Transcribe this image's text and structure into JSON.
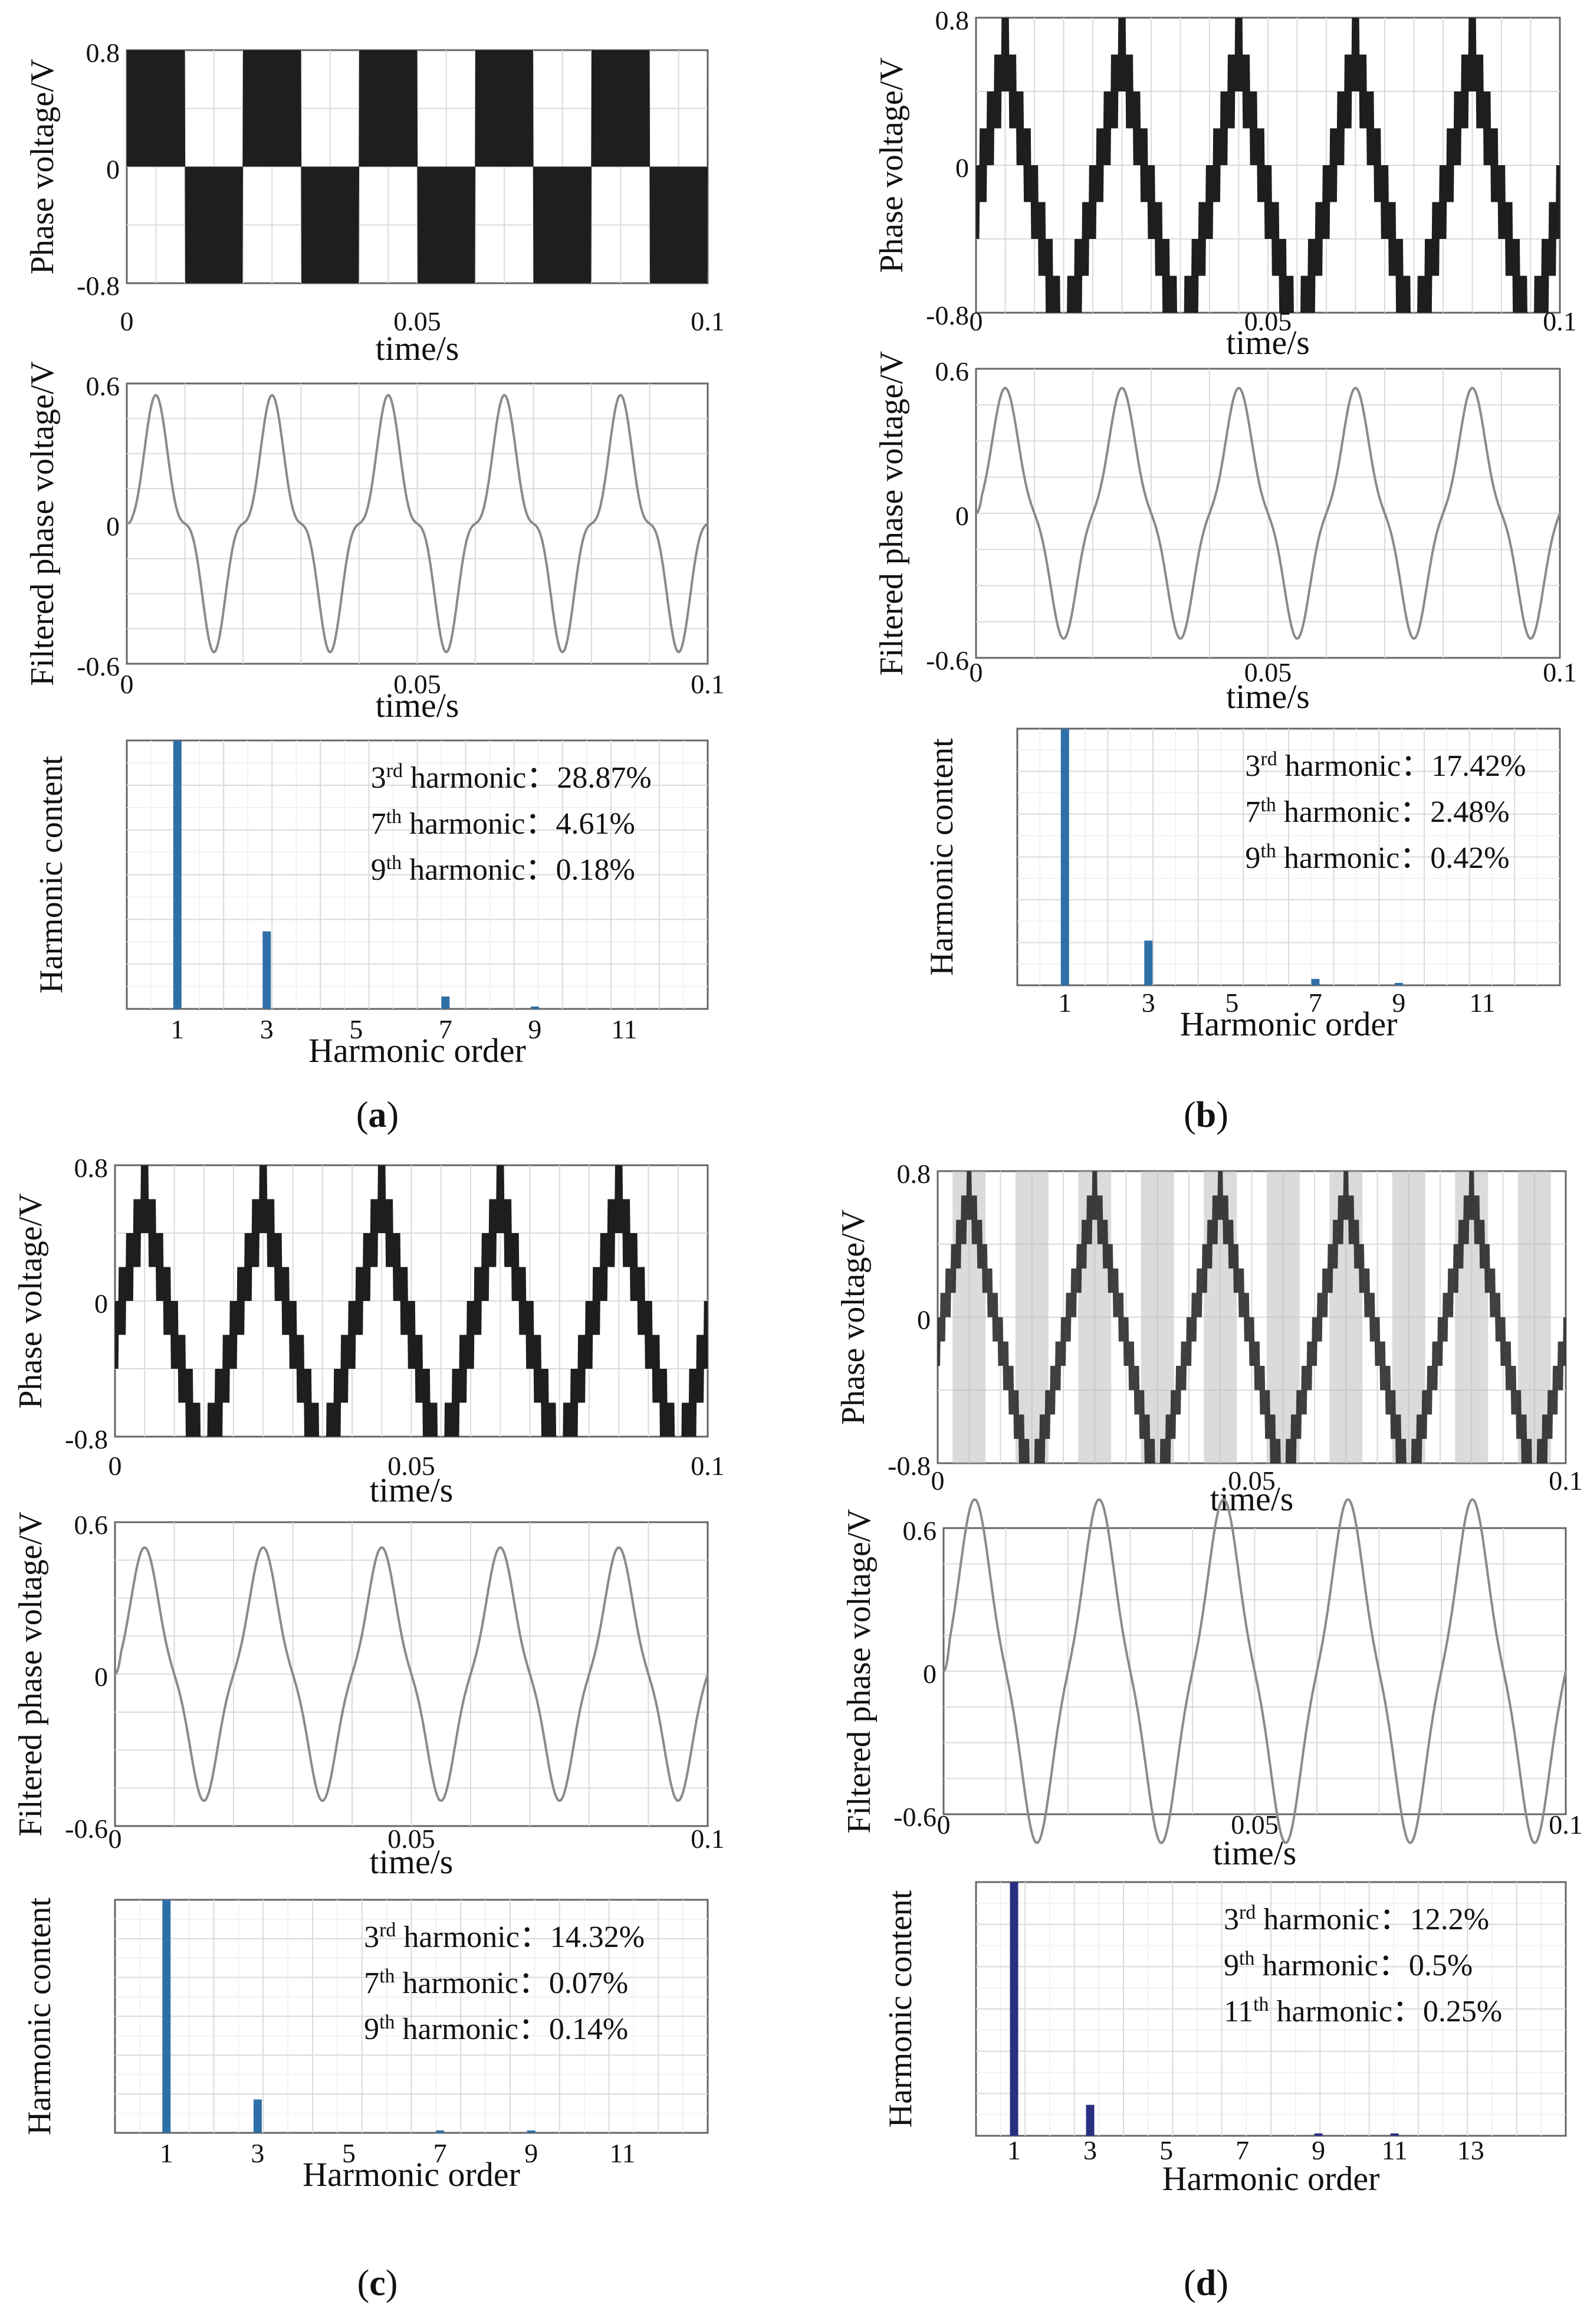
{
  "panels": [
    {
      "id": "a",
      "caption_letter": "a",
      "pwm_levels": 2,
      "phase_voltage": {
        "ylabel": "Phase voltage/V",
        "xlabel": "time/s",
        "yticks": [
          "0.8",
          "0",
          "-0.8"
        ],
        "xticks": [
          "0",
          "0.05",
          "0.1"
        ]
      },
      "filtered_voltage": {
        "ylabel": "Filtered phase voltage/V",
        "xlabel": "time/s",
        "yticks": [
          "0.6",
          "0",
          "-0.6"
        ],
        "xticks": [
          "0",
          "0.05",
          "0.1"
        ]
      },
      "harmonic_spectrum": {
        "ylabel": "Harmonic content",
        "xlabel": "Harmonic order",
        "xticks": [
          "1",
          "3",
          "5",
          "7",
          "9",
          "11"
        ],
        "annotations": [
          {
            "ord": "3",
            "sup": "rd",
            "tail": " harmonic：28.87%"
          },
          {
            "ord": "7",
            "sup": "th",
            "tail": " harmonic：4.61%"
          },
          {
            "ord": "9",
            "sup": "th",
            "tail": " harmonic：0.18%"
          }
        ]
      }
    },
    {
      "id": "b",
      "caption_letter": "b",
      "pwm_levels": 5,
      "phase_voltage": {
        "ylabel": "Phase voltage/V",
        "xlabel": "time/s",
        "yticks": [
          "0.8",
          "0",
          "-0.8"
        ],
        "xticks": [
          "0",
          "0.05",
          "0.1"
        ]
      },
      "filtered_voltage": {
        "ylabel": "Filtered phase voltage/V",
        "xlabel": "time/s",
        "yticks": [
          "0.6",
          "0",
          "-0.6"
        ],
        "xticks": [
          "0",
          "0.05",
          "0.1"
        ]
      },
      "harmonic_spectrum": {
        "ylabel": "Harmonic content",
        "xlabel": "Harmonic order",
        "xticks": [
          "1",
          "3",
          "5",
          "7",
          "9",
          "11"
        ],
        "annotations": [
          {
            "ord": "3",
            "sup": "rd",
            "tail": " harmonic：17.42%"
          },
          {
            "ord": "7",
            "sup": "th",
            "tail": " harmonic：2.48%"
          },
          {
            "ord": "9",
            "sup": "th",
            "tail": " harmonic：0.42%"
          }
        ]
      }
    },
    {
      "id": "c",
      "caption_letter": "c",
      "pwm_levels": 5,
      "phase_voltage": {
        "ylabel": "Phase voltage/V",
        "xlabel": "time/s",
        "yticks": [
          "0.8",
          "0",
          "-0.8"
        ],
        "xticks": [
          "0",
          "0.05",
          "0.1"
        ]
      },
      "filtered_voltage": {
        "ylabel": "Filtered phase voltage/V",
        "xlabel": "time/s",
        "yticks": [
          "0.6",
          "0",
          "-0.6"
        ],
        "xticks": [
          "0",
          "0.05",
          "0.1"
        ]
      },
      "harmonic_spectrum": {
        "ylabel": "Harmonic content",
        "xlabel": "Harmonic order",
        "xticks": [
          "1",
          "3",
          "5",
          "7",
          "9",
          "11"
        ],
        "annotations": [
          {
            "ord": "3",
            "sup": "rd",
            "tail": " harmonic：14.32%"
          },
          {
            "ord": "7",
            "sup": "th",
            "tail": " harmonic：0.07%"
          },
          {
            "ord": "9",
            "sup": "th",
            "tail": " harmonic：0.14%"
          }
        ]
      }
    },
    {
      "id": "d",
      "caption_letter": "d",
      "pwm_levels": 7,
      "phase_voltage": {
        "ylabel": "Phase voltage/V",
        "xlabel": "time/s",
        "yticks": [
          "0.8",
          "0",
          "-0.8"
        ],
        "xticks": [
          "0",
          "0.05",
          "0.1"
        ]
      },
      "filtered_voltage": {
        "ylabel": "Filtered phase voltage/V",
        "xlabel": "time/s",
        "yticks": [
          "0.6",
          "0",
          "-0.6"
        ],
        "xticks": [
          "0",
          "0.05",
          "0.1"
        ]
      },
      "harmonic_spectrum": {
        "ylabel": "Harmonic content",
        "xlabel": "Harmonic order",
        "xticks": [
          "1",
          "3",
          "5",
          "7",
          "9",
          "11",
          "13"
        ],
        "annotations": [
          {
            "ord": "3",
            "sup": "rd",
            "tail": " harmonic：12.2%"
          },
          {
            "ord": "9",
            "sup": "th",
            "tail": " harmonic：0.5%"
          },
          {
            "ord": "11",
            "sup": "th",
            "tail": " harmonic：0.25%"
          }
        ]
      }
    }
  ],
  "chart_data": [
    {
      "panel": "a",
      "plot": "phase voltage",
      "type": "line",
      "x_range": [
        0,
        0.1
      ],
      "ylim": [
        -0.8,
        0.8
      ],
      "fundamental_hz": 50,
      "waveform": "two-level PWM square-like phase voltage",
      "xlabel": "time/s",
      "ylabel": "Phase voltage/V"
    },
    {
      "panel": "a",
      "plot": "filtered phase voltage",
      "type": "line",
      "x_range": [
        0,
        0.1
      ],
      "ylim": [
        -0.6,
        0.6
      ],
      "fundamental_hz": 50,
      "peak": 0.55,
      "third_harmonic_ratio": 0.2887,
      "xlabel": "time/s",
      "ylabel": "Filtered phase voltage/V"
    },
    {
      "panel": "a",
      "plot": "harmonic spectrum",
      "type": "bar",
      "normalized_to_fundamental": true,
      "x": [
        1,
        3,
        5,
        7,
        9,
        11
      ],
      "values": [
        1.0,
        0.2887,
        0.0,
        0.0461,
        0.0018,
        0.0
      ],
      "xlabel": "Harmonic order",
      "ylabel": "Harmonic content"
    },
    {
      "panel": "b",
      "plot": "phase voltage",
      "type": "line",
      "x_range": [
        0,
        0.1
      ],
      "ylim": [
        -0.8,
        0.8
      ],
      "fundamental_hz": 50,
      "waveform": "multilevel staircase (triangular envelope)",
      "xlabel": "time/s",
      "ylabel": "Phase voltage/V"
    },
    {
      "panel": "b",
      "plot": "filtered phase voltage",
      "type": "line",
      "x_range": [
        0,
        0.1
      ],
      "ylim": [
        -0.6,
        0.6
      ],
      "fundamental_hz": 50,
      "peak": 0.52,
      "third_harmonic_ratio": 0.1742,
      "xlabel": "time/s",
      "ylabel": "Filtered phase voltage/V"
    },
    {
      "panel": "b",
      "plot": "harmonic spectrum",
      "type": "bar",
      "normalized_to_fundamental": true,
      "x": [
        1,
        3,
        5,
        7,
        9,
        11
      ],
      "values": [
        1.0,
        0.1742,
        0.0,
        0.0248,
        0.0042,
        0.0
      ],
      "xlabel": "Harmonic order",
      "ylabel": "Harmonic content"
    },
    {
      "panel": "c",
      "plot": "phase voltage",
      "type": "line",
      "x_range": [
        0,
        0.1
      ],
      "ylim": [
        -0.8,
        0.8
      ],
      "fundamental_hz": 50,
      "waveform": "multilevel staircase (triangular envelope)",
      "xlabel": "time/s",
      "ylabel": "Phase voltage/V"
    },
    {
      "panel": "c",
      "plot": "filtered phase voltage",
      "type": "line",
      "x_range": [
        0,
        0.1
      ],
      "ylim": [
        -0.6,
        0.6
      ],
      "fundamental_hz": 50,
      "peak": 0.5,
      "third_harmonic_ratio": 0.1432,
      "xlabel": "time/s",
      "ylabel": "Filtered phase voltage/V"
    },
    {
      "panel": "c",
      "plot": "harmonic spectrum",
      "type": "bar",
      "normalized_to_fundamental": true,
      "x": [
        1,
        3,
        5,
        7,
        9,
        11
      ],
      "values": [
        1.0,
        0.1432,
        0.0,
        0.0007,
        0.0014,
        0.0
      ],
      "xlabel": "Harmonic order",
      "ylabel": "Harmonic content"
    },
    {
      "panel": "d",
      "plot": "phase voltage",
      "type": "line",
      "x_range": [
        0,
        0.1
      ],
      "ylim": [
        -0.8,
        0.8
      ],
      "fundamental_hz": 50,
      "waveform": "multilevel PWM staircase (shaded switching bands)",
      "xlabel": "time/s",
      "ylabel": "Phase voltage/V"
    },
    {
      "panel": "d",
      "plot": "filtered phase voltage",
      "type": "line",
      "x_range": [
        0,
        0.1
      ],
      "ylim": [
        -0.6,
        0.6
      ],
      "fundamental_hz": 50,
      "peak": 0.72,
      "third_harmonic_ratio": 0.122,
      "xlabel": "time/s",
      "ylabel": "Filtered phase voltage/V"
    },
    {
      "panel": "d",
      "plot": "harmonic spectrum",
      "type": "bar",
      "normalized_to_fundamental": true,
      "x": [
        1,
        3,
        5,
        7,
        9,
        11,
        13
      ],
      "values": [
        1.0,
        0.122,
        0.0,
        0.0,
        0.005,
        0.0025,
        0.0
      ],
      "xlabel": "Harmonic order",
      "ylabel": "Harmonic content"
    }
  ]
}
